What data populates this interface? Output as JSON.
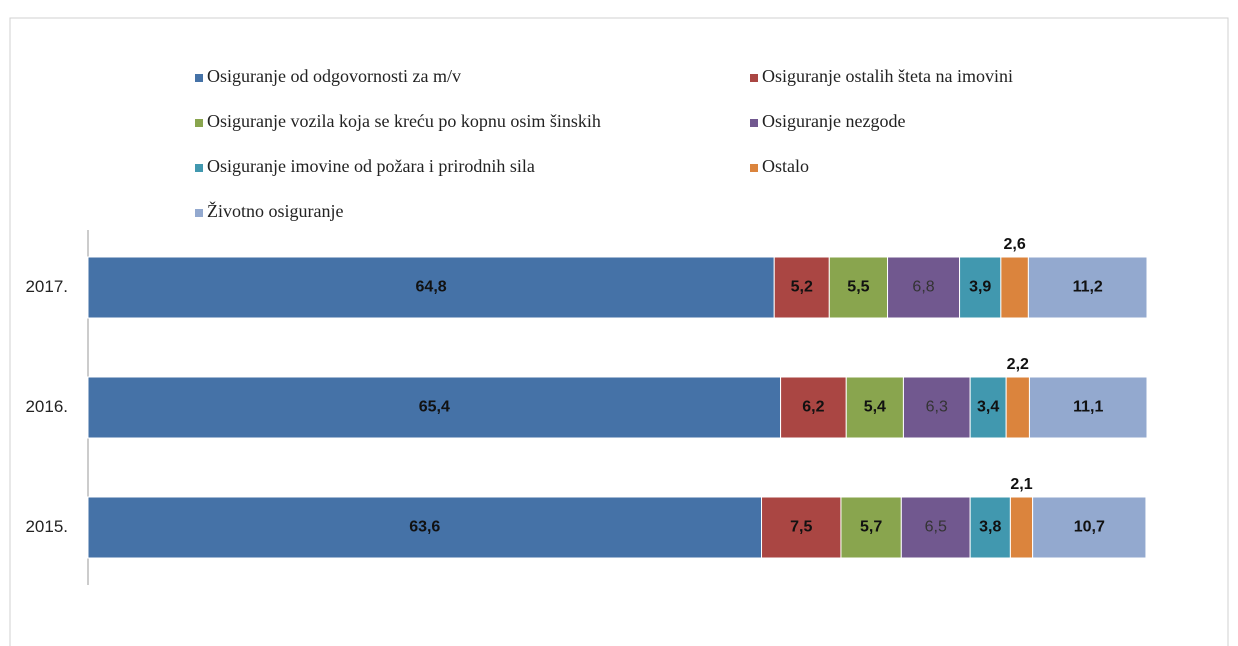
{
  "chart_data": {
    "type": "stacked-bar-horizontal",
    "categories": [
      "2017.",
      "2016.",
      "2015."
    ],
    "series": [
      {
        "name": "Osiguranje od odgovornosti za m/v",
        "color": "#4572a7",
        "values": [
          64.8,
          65.4,
          63.6
        ],
        "value_labels": [
          "64,8",
          "65,4",
          "63,6"
        ]
      },
      {
        "name": "Osiguranje ostalih šteta na imovini",
        "color": "#aa4643",
        "values": [
          5.2,
          6.2,
          7.5
        ],
        "value_labels": [
          "5,2",
          "6,2",
          "7,5"
        ]
      },
      {
        "name": "Osiguranje vozila koja se kreću po kopnu osim šinskih",
        "color": "#89a54e",
        "values": [
          5.5,
          5.4,
          5.7
        ],
        "value_labels": [
          "5,5",
          "5,4",
          "5,7"
        ]
      },
      {
        "name": "Osiguranje nezgode",
        "color": "#71588f",
        "values": [
          6.8,
          6.3,
          6.5
        ],
        "value_labels": [
          "6,8",
          "6,3",
          "6,5"
        ]
      },
      {
        "name": "Osiguranje imovine od požara i prirodnih sila",
        "color": "#4198af",
        "values": [
          3.9,
          3.4,
          3.8
        ],
        "value_labels": [
          "3,9",
          "3,4",
          "3,8"
        ]
      },
      {
        "name": "Ostalo",
        "color": "#db843d",
        "values": [
          2.6,
          2.2,
          2.1
        ],
        "value_labels": [
          "2,6",
          "2,2",
          "2,1"
        ]
      },
      {
        "name": "Životno osiguranje",
        "color": "#93a9cf",
        "values": [
          11.2,
          11.1,
          10.7
        ],
        "value_labels": [
          "11,2",
          "11,1",
          "10,7"
        ]
      }
    ]
  }
}
